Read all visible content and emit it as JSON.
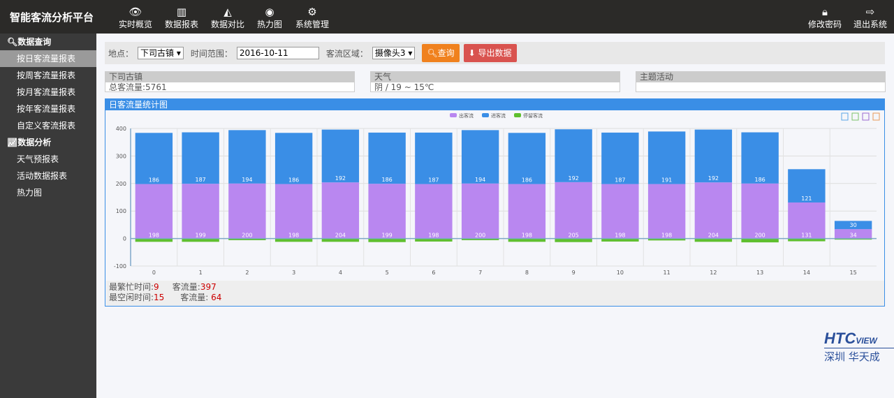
{
  "app_title": "智能客流分析平台",
  "nav": [
    {
      "label": "实时概览",
      "icon": "eye-icon"
    },
    {
      "label": "数据报表",
      "icon": "bar-chart-icon"
    },
    {
      "label": "数据对比",
      "icon": "area-chart-icon"
    },
    {
      "label": "热力图",
      "icon": "spotify-icon"
    },
    {
      "label": "系统管理",
      "icon": "gear-icon"
    }
  ],
  "nav_right": [
    {
      "label": "修改密码",
      "icon": "lock-icon"
    },
    {
      "label": "退出系统",
      "icon": "sign-out-icon"
    }
  ],
  "sidebar": {
    "groups": [
      {
        "title": "数据查询",
        "icon": "search-icon",
        "items": [
          "按日客流量报表",
          "按周客流量报表",
          "按月客流量报表",
          "按年客流量报表",
          "自定义客流报表"
        ]
      },
      {
        "title": "数据分析",
        "icon": "line-chart-icon",
        "items": [
          "天气预报表",
          "活动数据报表",
          "热力图"
        ]
      }
    ],
    "active": "按日客流量报表"
  },
  "filter": {
    "location_label": "地点：",
    "location_value": "下司古镇",
    "time_label": "时间范围：",
    "date_value": "2016-10-11",
    "area_label": "客流区域：",
    "area_value": "摄像头3",
    "query_btn": "查询",
    "export_btn": "导出数据"
  },
  "cards": [
    {
      "title": "下司古镇",
      "body": "总客流量:5761"
    },
    {
      "title": "天气",
      "body": "阴 / 19 ~ 15℃"
    },
    {
      "title": "主题活动",
      "body": ""
    }
  ],
  "chart_title": "日客流量统计图",
  "colors": {
    "in": "#b987f0",
    "out": "#3a8ee6",
    "stay": "#5fbf2f",
    "accent": "#3a8ee6",
    "query": "#f0811e",
    "export": "#d9534f"
  },
  "chart_data": {
    "type": "bar",
    "stacked": true,
    "categories": [
      "0",
      "1",
      "2",
      "3",
      "4",
      "5",
      "6",
      "7",
      "8",
      "9",
      "10",
      "11",
      "12",
      "13",
      "14",
      "15"
    ],
    "series": [
      {
        "name": "出客流",
        "values": [
          198,
          199,
          200,
          198,
          204,
          199,
          198,
          200,
          198,
          205,
          198,
          198,
          204,
          200,
          131,
          34
        ]
      },
      {
        "name": "进客流",
        "values": [
          186,
          187,
          194,
          186,
          192,
          186,
          187,
          194,
          186,
          192,
          187,
          191,
          192,
          186,
          121,
          30
        ]
      },
      {
        "name": "停留客流",
        "values": [
          -12,
          -12,
          -6,
          -12,
          -12,
          -13,
          -11,
          -6,
          -12,
          -13,
          -11,
          -7,
          -12,
          -14,
          -10,
          -4
        ]
      }
    ],
    "ylim": [
      -100,
      400
    ],
    "yticks": [
      "-100",
      "0",
      "100",
      "200",
      "300",
      "400"
    ],
    "grid": true,
    "legend": "top-center"
  },
  "summary": {
    "busy_label": "最繁忙时间:",
    "busy_value": "9",
    "busy_flow_label": "客流量:",
    "busy_flow": "397",
    "idle_label": "最空闲时间:",
    "idle_value": "15",
    "idle_flow_label": "客流量: ",
    "idle_flow": "64"
  },
  "logo": {
    "brand": "HTCview",
    "sub": "深圳 华天成"
  }
}
